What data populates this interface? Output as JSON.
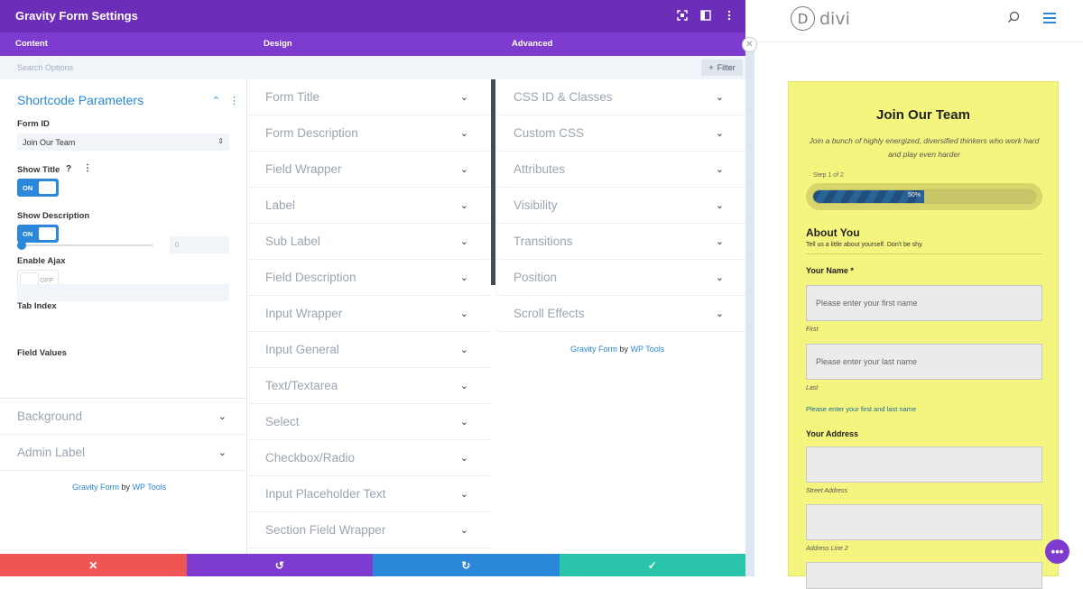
{
  "header": {
    "title": "Gravity Form Settings"
  },
  "tabs": [
    {
      "label": "Content"
    },
    {
      "label": "Design"
    },
    {
      "label": "Advanced"
    }
  ],
  "search": {
    "placeholder": "Search Options",
    "filter_label": "Filter"
  },
  "content": {
    "section_title": "Shortcode Parameters",
    "form_id": {
      "label": "Form ID",
      "value": "Join Our Team"
    },
    "show_title": {
      "label": "Show Title",
      "state": "ON",
      "help": "?"
    },
    "show_description": {
      "label": "Show Description",
      "state": "ON"
    },
    "enable_ajax": {
      "label": "Enable Ajax",
      "state": "OFF"
    },
    "tab_index": {
      "label": "Tab Index",
      "value": "0"
    },
    "field_values": {
      "label": "Field Values"
    },
    "collapsed": [
      {
        "label": "Background"
      },
      {
        "label": "Admin Label"
      }
    ],
    "credit": {
      "plugin": "Gravity Form",
      "by": "by",
      "author": "WP Tools"
    }
  },
  "design": {
    "items": [
      {
        "label": "Form Title"
      },
      {
        "label": "Form Description"
      },
      {
        "label": "Field Wrapper"
      },
      {
        "label": "Label"
      },
      {
        "label": "Sub Label"
      },
      {
        "label": "Field Description"
      },
      {
        "label": "Input Wrapper"
      },
      {
        "label": "Input General"
      },
      {
        "label": "Text/Textarea"
      },
      {
        "label": "Select"
      },
      {
        "label": "Checkbox/Radio"
      },
      {
        "label": "Input Placeholder Text"
      },
      {
        "label": "Section Field Wrapper"
      }
    ]
  },
  "advanced": {
    "items": [
      {
        "label": "CSS ID & Classes"
      },
      {
        "label": "Custom CSS"
      },
      {
        "label": "Attributes"
      },
      {
        "label": "Visibility"
      },
      {
        "label": "Transitions"
      },
      {
        "label": "Position"
      },
      {
        "label": "Scroll Effects"
      }
    ],
    "credit": {
      "plugin": "Gravity Form",
      "by": "by",
      "author": "WP Tools"
    }
  },
  "bottombar": {
    "buttons": [
      {
        "name": "discard",
        "icon": "close-icon",
        "glyph": "✕",
        "color": "#ef5555"
      },
      {
        "name": "undo",
        "icon": "undo-icon",
        "glyph": "↺",
        "color": "#7e3bd0"
      },
      {
        "name": "redo",
        "icon": "redo-icon",
        "glyph": "↻",
        "color": "#2b87da"
      },
      {
        "name": "save",
        "icon": "check-icon",
        "glyph": "✓",
        "color": "#29c4a9"
      }
    ]
  },
  "preview": {
    "logo_letter": "D",
    "logo_text": "divi",
    "form": {
      "title": "Join Our Team",
      "description": "Join a bunch of highly energized, diversified thinkers who work hard and play even harder",
      "step": "Step 1 of 2",
      "progress_percent": 50,
      "progress_label": "50%",
      "section_title": "About You",
      "section_sub": "Tell us a little about yourself. Don't be shy.",
      "name_label": "Your Name *",
      "first_placeholder": "Please enter your first name",
      "first_hint": "First",
      "last_placeholder": "Please enter your last name",
      "last_hint": "Last",
      "name_help": "Please enter your first and last name",
      "address_label": "Your Address",
      "street_hint": "Street Address",
      "line2_hint": "Address Line 2"
    }
  },
  "colors": {
    "purple_dark": "#6c2eb9",
    "purple": "#7e3bd0",
    "blue": "#2b87da",
    "form_bg": "#f4f57e"
  }
}
